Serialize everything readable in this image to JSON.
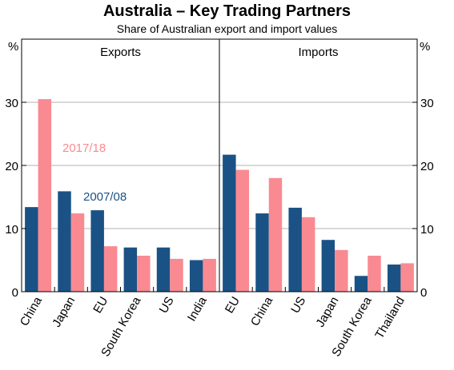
{
  "title": "Australia – Key Trading Partners",
  "subtitle": "Share of Australian export and import values",
  "chart_data": {
    "type": "bar",
    "title": "Australia – Key Trading Partners",
    "subtitle": "Share of Australian export and import values",
    "yunit": "%",
    "ylim": [
      0,
      40
    ],
    "yticks": [
      0,
      10,
      20,
      30
    ],
    "grid": true,
    "colors": {
      "2007/08": "#1a5285",
      "2017/18": "#f98a91"
    },
    "panels": [
      {
        "name": "Exports",
        "categories": [
          "China",
          "Japan",
          "EU",
          "South Korea",
          "US",
          "India"
        ],
        "series": [
          {
            "name": "2007/08",
            "values": [
              13.4,
              15.9,
              12.9,
              7.0,
              7.0,
              5.0
            ]
          },
          {
            "name": "2017/18",
            "values": [
              30.5,
              12.4,
              7.2,
              5.7,
              5.2,
              5.2
            ]
          }
        ]
      },
      {
        "name": "Imports",
        "categories": [
          "EU",
          "China",
          "US",
          "Japan",
          "South Korea",
          "Thailand"
        ],
        "series": [
          {
            "name": "2007/08",
            "values": [
              21.7,
              12.4,
              13.3,
              8.2,
              2.5,
              4.3
            ]
          },
          {
            "name": "2017/18",
            "values": [
              19.3,
              18.0,
              11.8,
              6.6,
              5.7,
              4.5
            ]
          }
        ]
      }
    ],
    "annotations": [
      "2017/18",
      "2007/08"
    ]
  }
}
